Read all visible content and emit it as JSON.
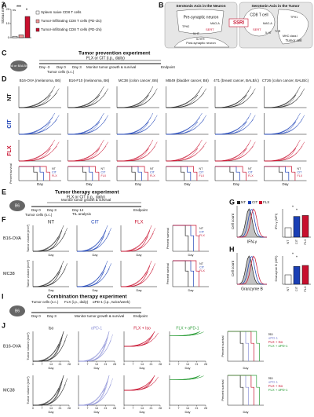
{
  "A": {
    "letter": "A",
    "y_label": "Slc6a4 mRNA",
    "ylim": [
      0,
      20
    ],
    "yticks": [
      0,
      10,
      20
    ],
    "sig": [
      "***",
      "ns",
      "*"
    ],
    "series": [
      {
        "name": "Spleen naive CD8 T cells",
        "color": "#ffffff",
        "values": [
          1
        ]
      },
      {
        "name": "Tumor-infiltrating CD8 T cells (PD-1lo)",
        "color": "#f19a9a",
        "values": [
          2
        ]
      },
      {
        "name": "Tumor-infiltrating CD8 T cells (PD-1hi)",
        "color": "#c8102e",
        "values": [
          15
        ]
      }
    ]
  },
  "B": {
    "letter": "B",
    "neuron_title": "Serotonin Axis in the Neuron",
    "tumor_title": "Serotonin Axis in the Tumor",
    "pre": "Pre-synaptic neuron",
    "post": "Post-synaptic neuron",
    "tcell": "CD8 T cell",
    "tumor": "Tumor cell",
    "ssri": "SSRI",
    "sert": "SERT",
    "tph2": "TPH2",
    "tph1": "TPH1",
    "maoa": "MAO-A",
    "ht": "5-HT",
    "htr": "5-HTR",
    "tcr": "TCR",
    "mhc": "MHC class I"
  },
  "C": {
    "letter": "C",
    "title": "Tumor prevention experiment",
    "mouse": "B6 or BALB/c",
    "drug": "FLX or CIT (i.p., daily)",
    "days": [
      "Day -3",
      "Day 0",
      "Day 3"
    ],
    "tumor": "Tumor cells (s.c.)",
    "monitor": "Monitor tumor growth & survival",
    "end": "Endpoint"
  },
  "D": {
    "letter": "D",
    "models": [
      "B16-OVA (melanoma, B6)",
      "B16-F10 (melanoma, B6)",
      "MC38 (colon cancer, B6)",
      "MB49 (bladder cancer, B6)",
      "4T1 (breast cancer, BALB/c)",
      "CT26 (colon cancer, BALB/c)"
    ],
    "groups": [
      {
        "name": "NT",
        "color": "#222222"
      },
      {
        "name": "CIT",
        "color": "#1a3fb5"
      },
      {
        "name": "FLX",
        "color": "#c8102e"
      }
    ],
    "survival_label": "Percent survival",
    "x_label": "Day"
  },
  "E": {
    "letter": "E",
    "title": "Tumor therapy experiment",
    "mouse": "B6",
    "drug": "FLX or CIT (i.p., daily)",
    "days": [
      "Day 0",
      "Day 3",
      "Day 14"
    ],
    "monitor": "Monitor tumor growth & survival",
    "til": "TIL analysis",
    "tumor": "Tumor cells (s.c.)",
    "end": "Endpoint"
  },
  "F": {
    "letter": "F",
    "models": [
      "B16-OVA",
      "MC38"
    ],
    "y_label": "Tumor volume (mm³)",
    "survival_label": "Percent survival",
    "x_label": "Day"
  },
  "G": {
    "letter": "G",
    "x_label": "IFN-γ",
    "y_label": "Cell count",
    "bar_label": "IFN-γ (MFI)",
    "ylim": [
      0,
      1500
    ],
    "values": [
      500,
      1100,
      1150
    ],
    "sig": [
      "*",
      "*"
    ]
  },
  "H": {
    "letter": "H",
    "x_label": "Granzyme B",
    "y_label": "Cell count",
    "bar_label": "Granzyme B (MFI)",
    "ylim": [
      0,
      3000
    ],
    "values": [
      1000,
      1900,
      2000
    ],
    "sig": [
      "*",
      "*"
    ]
  },
  "I": {
    "letter": "I",
    "title": "Combination therapy experiment",
    "mouse": "B6",
    "tumor": "Tumor cells (s.c.)",
    "drug1": "FLX (i.p., daily)",
    "drug2": "αPD-1 (i.p., twice/week)",
    "days": [
      "Day 0",
      "Day 3"
    ],
    "monitor": "Monitor tumor growth & survival",
    "end": "Endpoint"
  },
  "J": {
    "letter": "J",
    "models": [
      "B16-OVA",
      "MC38"
    ],
    "groups": [
      {
        "name": "Iso",
        "color": "#222222"
      },
      {
        "name": "αPD-1",
        "color": "#8a8fd6"
      },
      {
        "name": "FLX + Iso",
        "color": "#c8102e"
      },
      {
        "name": "FLX + αPD-1",
        "color": "#2e9e3a"
      }
    ],
    "xticks": [
      0,
      7,
      14,
      21,
      28
    ],
    "x_label": "Day",
    "y_label": "Tumor volume (mm³)",
    "survival_label": "Percent survival"
  }
}
